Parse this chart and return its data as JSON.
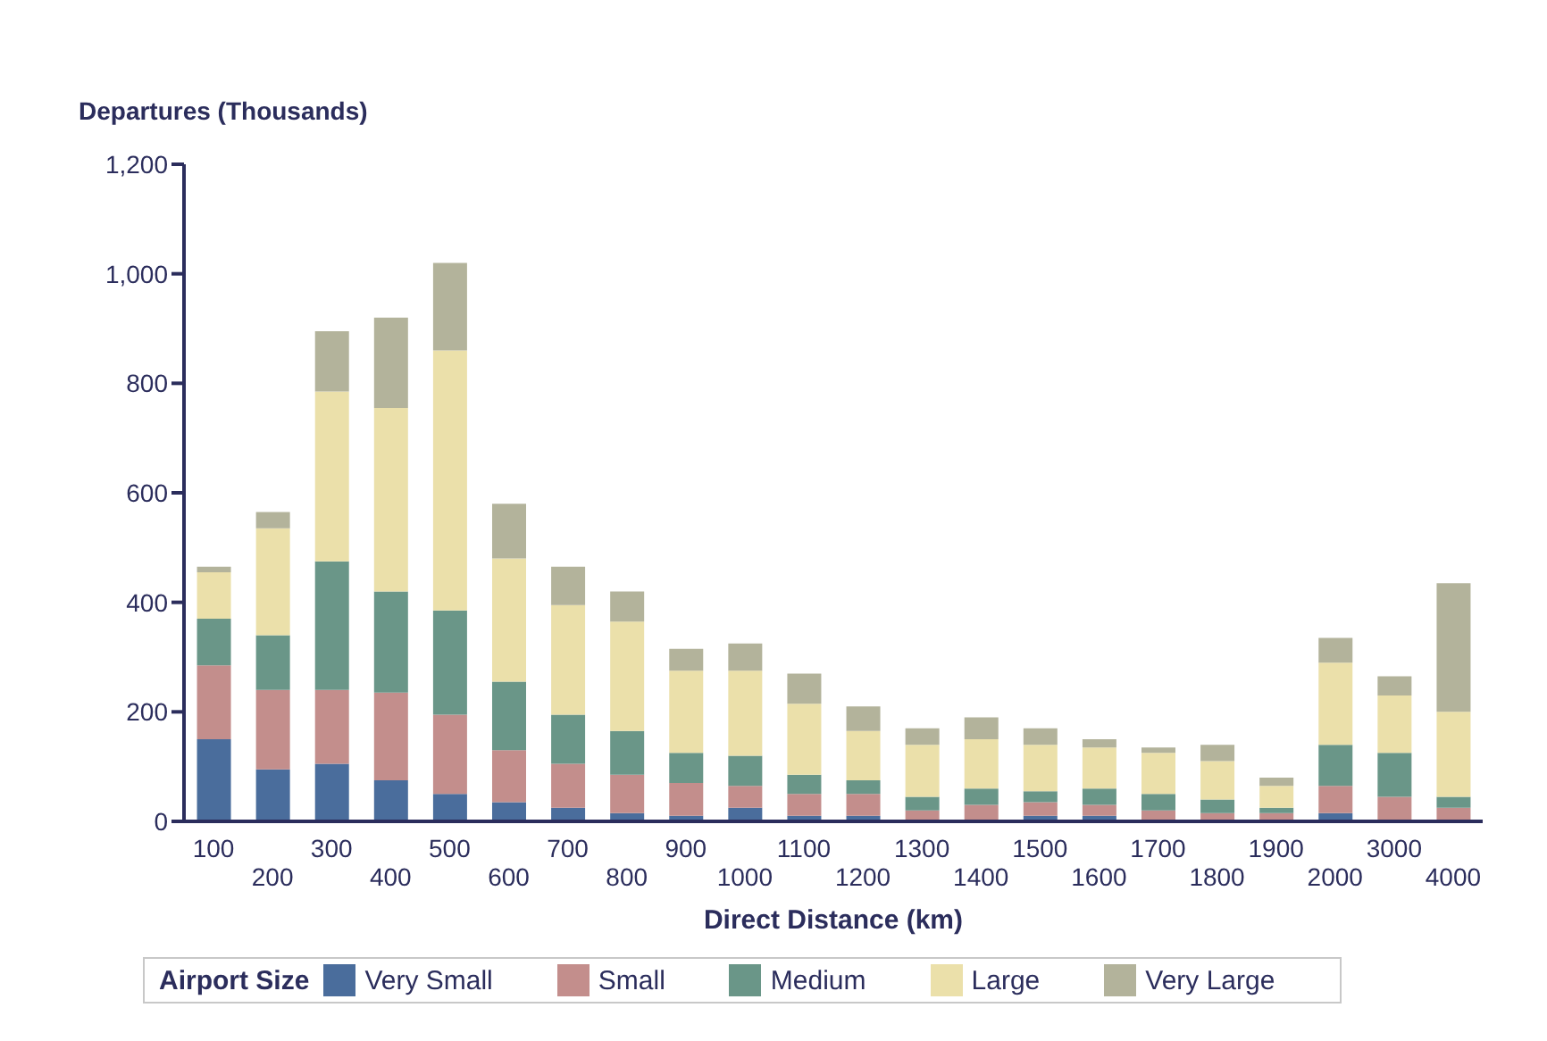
{
  "chart_data": {
    "type": "bar",
    "stacked": true,
    "xlabel": "Direct Distance (km)",
    "ylabel": "Departures (Thousands)",
    "legend_title": "Airport Size",
    "legend": "bottom",
    "grid": false,
    "categories": [
      "100",
      "200",
      "300",
      "400",
      "500",
      "600",
      "700",
      "800",
      "900",
      "1000",
      "1100",
      "1200",
      "1300",
      "1400",
      "1500",
      "1600",
      "1700",
      "1800",
      "1900",
      "2000",
      "3000",
      "4000"
    ],
    "ylim": [
      0,
      1200
    ],
    "yticks": [
      0,
      200,
      400,
      600,
      800,
      {
        "value": 1000,
        "label": "1,000"
      },
      {
        "value": 1200,
        "label": "1,200"
      }
    ],
    "series": [
      {
        "name": "Very Small",
        "color": "#4a6d9c",
        "values": [
          150,
          95,
          105,
          75,
          50,
          35,
          25,
          15,
          10,
          25,
          10,
          10,
          null,
          null,
          10,
          10,
          null,
          null,
          null,
          15,
          null,
          null
        ]
      },
      {
        "name": "Small",
        "color": "#c38e8c",
        "values": [
          135,
          145,
          135,
          160,
          145,
          95,
          80,
          70,
          60,
          40,
          40,
          40,
          20,
          30,
          25,
          20,
          20,
          15,
          15,
          50,
          45,
          25
        ]
      },
      {
        "name": "Medium",
        "color": "#6a9688",
        "values": [
          85,
          100,
          235,
          185,
          190,
          125,
          90,
          80,
          55,
          55,
          35,
          25,
          25,
          30,
          20,
          30,
          30,
          25,
          10,
          75,
          80,
          20
        ]
      },
      {
        "name": "Large",
        "color": "#ebe0aa",
        "values": [
          85,
          195,
          310,
          335,
          475,
          225,
          200,
          200,
          150,
          155,
          130,
          90,
          95,
          90,
          85,
          75,
          75,
          70,
          40,
          150,
          105,
          155
        ]
      },
      {
        "name": "Very Large",
        "color": "#b3b39b",
        "values": [
          10,
          30,
          110,
          165,
          160,
          100,
          70,
          55,
          40,
          50,
          55,
          45,
          30,
          40,
          30,
          15,
          10,
          30,
          15,
          45,
          35,
          235
        ]
      }
    ]
  }
}
